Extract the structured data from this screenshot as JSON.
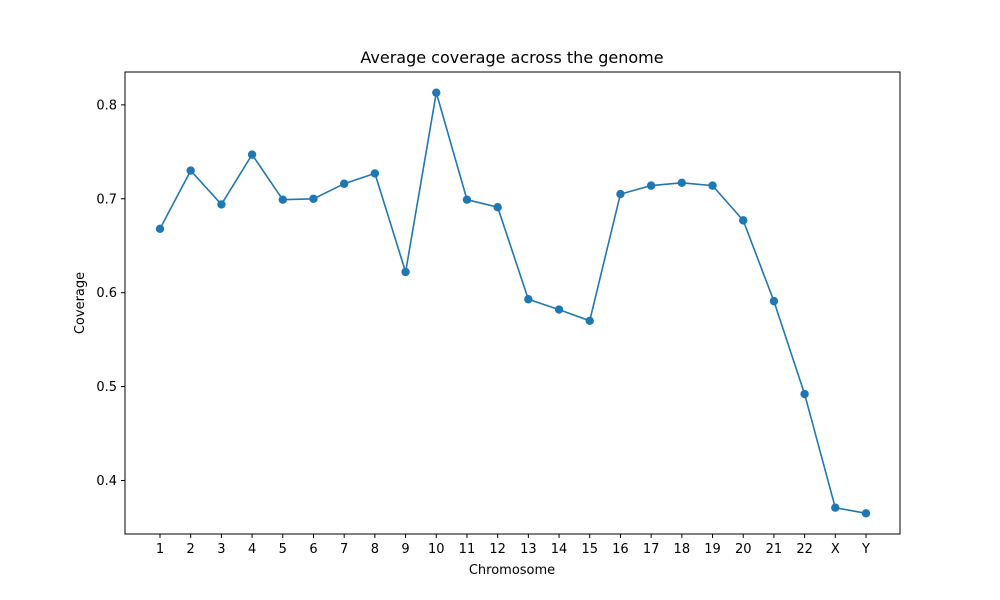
{
  "chart_data": {
    "type": "line",
    "title": "Average coverage across the genome",
    "xlabel": "Chromosome",
    "ylabel": "Coverage",
    "categories": [
      "1",
      "2",
      "3",
      "4",
      "5",
      "6",
      "7",
      "8",
      "9",
      "10",
      "11",
      "12",
      "13",
      "14",
      "15",
      "16",
      "17",
      "18",
      "19",
      "20",
      "21",
      "22",
      "X",
      "Y"
    ],
    "series": [
      {
        "values": [
          0.668,
          0.73,
          0.694,
          0.747,
          0.699,
          0.7,
          0.716,
          0.727,
          0.622,
          0.813,
          0.699,
          0.691,
          0.593,
          0.582,
          0.57,
          0.705,
          0.714,
          0.717,
          0.714,
          0.677,
          0.591,
          0.492,
          0.371,
          0.365
        ]
      }
    ],
    "yticks": [
      "0.4",
      "0.5",
      "0.6",
      "0.7",
      "0.8"
    ],
    "ylim": [
      0.343,
      0.835
    ],
    "grid": false,
    "line_color": "#1f77b4",
    "marker": "circle"
  }
}
